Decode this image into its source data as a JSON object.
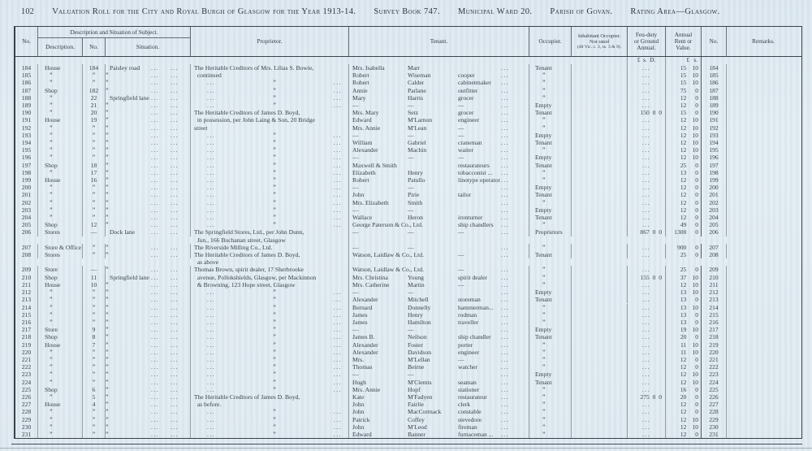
{
  "page": {
    "number": "102",
    "title_segments": [
      "Valuation Roll for the City and Royal Burgh of Glasgow for the Year 1913-14.",
      "Survey Book 747.",
      "Municipal Ward 20.",
      "Parish of Govan.",
      "Rating Area—Glasgow."
    ]
  },
  "table": {
    "headers": {
      "no_left": "No.",
      "desc_group": "Description and Situation of Subject.",
      "description": "Description.",
      "sub_no": "No.",
      "situation": "Situation.",
      "proprietor": "Proprietor.",
      "tenant": "Tenant.",
      "occupier": "Occupier.",
      "inhabitant_lines": [
        "Inhabitant Occupier.",
        "Not rated",
        "(48 Vic. c. 3, ss. 3 & 9)."
      ],
      "feu_lines": [
        "Feu-duty",
        "or Ground",
        "Annual."
      ],
      "rent_lines": [
        "Annual",
        "Rent or",
        "Value."
      ],
      "no_right": "No.",
      "remarks": "Remarks."
    },
    "currency_feu": "£  s.  D.",
    "currency_rent": "£   s.",
    "ink_color": "#39424a",
    "paper_color": "#e1ebf2",
    "rows": [
      {
        "n": "184",
        "d": "House",
        "sn": "184",
        "s": "Paisley road",
        "p": [
          "The Heritable Creditors of Mrs. Lilias S. Bowie,"
        ],
        "t1": "Mrs. Isabella",
        "t2": "Marr",
        "t3": "",
        "o": "Tenant",
        "f": null,
        "rl": "15",
        "rs": "10"
      },
      {
        "n": "185",
        "d": "”",
        "sn": "”",
        "s": "”",
        "p": [
          " continued"
        ],
        "t1": "Robert",
        "t2": "Wiseman",
        "t3": "cooper",
        "o": "”",
        "f": null,
        "rl": "15",
        "rs": "10"
      },
      {
        "n": "186",
        "d": "”",
        "sn": "”",
        "s": "”",
        "p": null,
        "t1": "Robert",
        "t2": "Calder",
        "t3": "cabinetmaker",
        "o": "”",
        "f": null,
        "rl": "15",
        "rs": "10"
      },
      {
        "n": "187",
        "d": "Shop",
        "sn": "182",
        "s": "”",
        "p": null,
        "t1": "Annie",
        "t2": "Parlane",
        "t3": "outfitter",
        "o": "”",
        "f": null,
        "rl": "75",
        "rs": "0"
      },
      {
        "n": "188",
        "d": "”",
        "sn": "22",
        "s": "Springfield lane",
        "p": null,
        "t1": "Mary",
        "t2": "Harris",
        "t3": "grocer",
        "o": "”",
        "f": null,
        "rl": "12",
        "rs": "0"
      },
      {
        "n": "189",
        "d": "”",
        "sn": "21",
        "s": "”",
        "p": null,
        "t1": "—",
        "t2": "—",
        "t3": "—",
        "o": "Empty",
        "f": null,
        "rl": "12",
        "rs": "0"
      },
      {
        "n": "190",
        "d": "”",
        "sn": "20",
        "s": "”",
        "p": [
          "The Heritable Creditors of James D. Boyd,"
        ],
        "t1": "Mrs. Mary",
        "t2": "Setz",
        "t3": "grocer",
        "o": "Tenant",
        "f": "150  0  0",
        "rl": "15",
        "rs": "0"
      },
      {
        "n": "191",
        "d": "House",
        "sn": "19",
        "s": "”",
        "p": [
          " in possession, per John Laing & Son, 20 Bridge"
        ],
        "t1": "Edward",
        "t2": "M'Larnon",
        "t3": "engineer",
        "o": "”",
        "f": null,
        "rl": "12",
        "rs": "10"
      },
      {
        "n": "192",
        "d": "”",
        "sn": "”",
        "s": "”",
        "p": [
          "street"
        ],
        "t1": "Mrs. Annie",
        "t2": "M'Lean",
        "t3": "—",
        "o": "”",
        "f": null,
        "rl": "12",
        "rs": "10"
      },
      {
        "n": "193",
        "d": "”",
        "sn": "”",
        "s": "”",
        "p": null,
        "t1": "—",
        "t2": "—",
        "t3": "—",
        "o": "Empty",
        "f": null,
        "rl": "12",
        "rs": "10"
      },
      {
        "n": "194",
        "d": "”",
        "sn": "”",
        "s": "”",
        "p": null,
        "t1": "William",
        "t2": "Gabriel",
        "t3": "craneman",
        "o": "Tenant",
        "f": null,
        "rl": "12",
        "rs": "10"
      },
      {
        "n": "195",
        "d": "”",
        "sn": "”",
        "s": "”",
        "p": null,
        "t1": "Alexander",
        "t2": "Machin",
        "t3": "waiter",
        "o": "”",
        "f": null,
        "rl": "12",
        "rs": "10"
      },
      {
        "n": "196",
        "d": "”",
        "sn": "”",
        "s": "”",
        "p": null,
        "t1": "—",
        "t2": "—",
        "t3": "—",
        "o": "Empty",
        "f": null,
        "rl": "12",
        "rs": "10"
      },
      {
        "n": "197",
        "d": "Shop",
        "sn": "18",
        "s": "”",
        "p": null,
        "t1": "Maxwell & Smith",
        "t2": "",
        "t3": "restaurateurs",
        "w": 1,
        "o": "Tenant",
        "f": null,
        "rl": "25",
        "rs": "0"
      },
      {
        "n": "198",
        "d": "”",
        "sn": "17",
        "s": "”",
        "p": null,
        "t1": "Elizabeth",
        "t2": "Henry",
        "t3": "tobacconist ...",
        "o": "”",
        "f": null,
        "rl": "13",
        "rs": "0"
      },
      {
        "n": "199",
        "d": "House",
        "sn": "16",
        "s": "”",
        "p": null,
        "t1": "Robert",
        "t2": "Patullo",
        "t3": "linotype operator",
        "o": "”",
        "f": null,
        "rl": "12",
        "rs": "0"
      },
      {
        "n": "200",
        "d": "”",
        "sn": "”",
        "s": "”",
        "p": null,
        "t1": "—",
        "t2": "—",
        "t3": "",
        "o": "Empty",
        "f": null,
        "rl": "12",
        "rs": "0"
      },
      {
        "n": "201",
        "d": "”",
        "sn": "”",
        "s": "”",
        "p": null,
        "t1": "John",
        "t2": "Pirie",
        "t3": "tailor",
        "o": "Tenant",
        "f": null,
        "rl": "12",
        "rs": "0"
      },
      {
        "n": "202",
        "d": "”",
        "sn": "”",
        "s": "”",
        "p": null,
        "t1": "Mrs. Elizabeth",
        "t2": "Smith",
        "t3": "",
        "o": "”",
        "f": null,
        "rl": "12",
        "rs": "0"
      },
      {
        "n": "203",
        "d": "”",
        "sn": "”",
        "s": "”",
        "p": null,
        "t1": "—",
        "t2": "—",
        "t3": "",
        "o": "Empty",
        "f": null,
        "rl": "12",
        "rs": "0"
      },
      {
        "n": "204",
        "d": "”",
        "sn": "”",
        "s": "”",
        "p": null,
        "t1": "Wallace",
        "t2": "Heron",
        "t3": "ironturner",
        "o": "Tenant",
        "f": null,
        "rl": "12",
        "rs": "0"
      },
      {
        "n": "205",
        "d": "Shop",
        "sn": "12",
        "s": "”",
        "p": null,
        "t1": "George Paterson & Co., Ltd.",
        "t2": "",
        "t3": "ship chandlers",
        "w": 1,
        "o": "”",
        "f": null,
        "rl": "49",
        "rs": "0"
      },
      {
        "n": "206",
        "d": "Stores",
        "sn": "—",
        "s": "Dock lane",
        "p": [
          "The Springfield Stores, Ltd., per John Dunn,",
          " Jun., 166 Buchanan street, Glasgow"
        ],
        "h": 2,
        "t1": "—",
        "t2": "—",
        "t3": "—",
        "o": "Proprietors",
        "f": "867  0  0",
        "rl": "1300",
        "rs": "0"
      },
      {
        "n": "207",
        "d": "Store & Office",
        "sn": "”",
        "s": "”",
        "p": [
          "The Riverside Milling Co., Ltd."
        ],
        "t1": "—",
        "t2": "—",
        "t3": "",
        "o": "”",
        "f": null,
        "rl": "900",
        "rs": "0"
      },
      {
        "n": "208",
        "d": "Stores",
        "sn": "”",
        "s": "”",
        "p": [
          "The Heritable Creditors of James D. Boyd,",
          " as above"
        ],
        "h": 2,
        "t1": "Watson, Laidlaw & Co., Ltd.",
        "t2": "",
        "t3": "—",
        "w": 1,
        "o": "Tenant",
        "f": null,
        "rl": "25",
        "rs": "0"
      },
      {
        "n": "209",
        "d": "Store",
        "sn": "—",
        "s": "”",
        "p": [
          "Thomas Brown, spirit dealer, 17 Sherbrooke"
        ],
        "t1": "Watson, Laidlaw & Co., Ltd.",
        "t2": "",
        "t3": "—",
        "w": 1,
        "o": "”",
        "f": null,
        "rl": "25",
        "rs": "0"
      },
      {
        "n": "210",
        "d": "Shop",
        "sn": "11",
        "s": "Springfield lane",
        "p": [
          " avenue, Pollokshields, Glasgow, per Mackinnon"
        ],
        "t1": "Mrs. Christina",
        "t2": "Young",
        "t3": "spirit dealer",
        "o": "”",
        "f": "155  0  0",
        "rl": "37",
        "rs": "10"
      },
      {
        "n": "211",
        "d": "House",
        "sn": "10",
        "s": "”",
        "p": [
          " & Browning, 123 Hope street, Glasgow"
        ],
        "t1": "Mrs. Catherine",
        "t2": "Martin",
        "t3": "—",
        "o": "”",
        "f": null,
        "rl": "12",
        "rs": "10"
      },
      {
        "n": "212",
        "d": "”",
        "sn": "”",
        "s": "”",
        "p": null,
        "t1": "—",
        "t2": "—",
        "t3": "",
        "o": "Empty",
        "f": null,
        "rl": "13",
        "rs": "10"
      },
      {
        "n": "213",
        "d": "”",
        "sn": "”",
        "s": "”",
        "p": null,
        "t1": "Alexander",
        "t2": "Mitchell",
        "t3": "storeman",
        "o": "Tenant",
        "f": null,
        "rl": "13",
        "rs": "0"
      },
      {
        "n": "214",
        "d": "”",
        "sn": "”",
        "s": "”",
        "p": null,
        "t1": "Bernard",
        "t2": "Donnelly",
        "t3": "hammerman...",
        "o": "”",
        "f": null,
        "rl": "13",
        "rs": "10"
      },
      {
        "n": "215",
        "d": "”",
        "sn": "”",
        "s": "”",
        "p": null,
        "t1": "James",
        "t2": "Henry",
        "t3": "rodman",
        "o": "”",
        "f": null,
        "rl": "13",
        "rs": "0"
      },
      {
        "n": "216",
        "d": "”",
        "sn": "”",
        "s": "”",
        "p": null,
        "t1": "James",
        "t2": "Hamilton",
        "t3": "traveller",
        "o": "”",
        "f": null,
        "rl": "13",
        "rs": "0"
      },
      {
        "n": "217",
        "d": "Store",
        "sn": "9",
        "s": "”",
        "p": null,
        "t1": "—",
        "t2": "—",
        "t3": "",
        "o": "Empty",
        "f": null,
        "rl": "19",
        "rs": "10"
      },
      {
        "n": "218",
        "d": "Shop",
        "sn": "8",
        "s": "”",
        "p": null,
        "t1": "James B.",
        "t2": "Neilson",
        "t3": "ship chandler",
        "o": "Tenant",
        "f": null,
        "rl": "20",
        "rs": "0"
      },
      {
        "n": "219",
        "d": "House",
        "sn": "7",
        "s": "”",
        "p": null,
        "t1": "Alexander",
        "t2": "Foster",
        "t3": "porter",
        "o": "”",
        "f": null,
        "rl": "11",
        "rs": "10"
      },
      {
        "n": "220",
        "d": "”",
        "sn": "”",
        "s": "”",
        "p": null,
        "t1": "Alexander",
        "t2": "Davidson",
        "t3": "engineer",
        "o": "”",
        "f": null,
        "rl": "11",
        "rs": "10"
      },
      {
        "n": "221",
        "d": "”",
        "sn": "”",
        "s": "”",
        "p": null,
        "t1": "Mrs.",
        "t2": "M'Lellan",
        "t3": "—",
        "o": "”",
        "f": null,
        "rl": "12",
        "rs": "0"
      },
      {
        "n": "222",
        "d": "”",
        "sn": "”",
        "s": "”",
        "p": null,
        "t1": "Thomas",
        "t2": "Beirne",
        "t3": "watcher",
        "o": "”",
        "f": null,
        "rl": "12",
        "rs": "0"
      },
      {
        "n": "223",
        "d": "”",
        "sn": "”",
        "s": "”",
        "p": null,
        "t1": "—",
        "t2": "—",
        "t3": "",
        "o": "Empty",
        "f": null,
        "rl": "12",
        "rs": "10"
      },
      {
        "n": "224",
        "d": "”",
        "sn": "”",
        "s": "”",
        "p": null,
        "t1": "Hugh",
        "t2": "M'Clemts",
        "t3": "seaman",
        "o": "Tenant",
        "f": null,
        "rl": "12",
        "rs": "10"
      },
      {
        "n": "225",
        "d": "Shop",
        "sn": "6",
        "s": "”",
        "p": null,
        "t1": "Mrs. Annie",
        "t2": "Hopf",
        "t3": "stationer",
        "o": "”",
        "f": null,
        "rl": "16",
        "rs": "0"
      },
      {
        "n": "226",
        "d": "”",
        "sn": "5",
        "s": "”",
        "p": [
          "The Heritable Creditors of James D. Boyd,"
        ],
        "t1": "Kate",
        "t2": "M'Fadyen",
        "t3": "restaurateur",
        "o": "”",
        "f": "275  0  0",
        "rl": "20",
        "rs": "0"
      },
      {
        "n": "227",
        "d": "House",
        "sn": "4",
        "s": "”",
        "p": [
          " as before."
        ],
        "t1": "John",
        "t2": "Fairlie",
        "t3": "clerk",
        "o": "”",
        "f": null,
        "rl": "12",
        "rs": "0"
      },
      {
        "n": "228",
        "d": "”",
        "sn": "”",
        "s": "”",
        "p": null,
        "t1": "John",
        "t2": "MacCormack",
        "t3": "constable",
        "o": "”",
        "f": null,
        "rl": "12",
        "rs": "0"
      },
      {
        "n": "229",
        "d": "”",
        "sn": "”",
        "s": "”",
        "p": null,
        "t1": "Patrick",
        "t2": "Coffey",
        "t3": "stevedore",
        "o": "”",
        "f": null,
        "rl": "12",
        "rs": "10"
      },
      {
        "n": "230",
        "d": "”",
        "sn": "”",
        "s": "”",
        "p": null,
        "t1": "John",
        "t2": "M'Leod",
        "t3": "fireman",
        "o": "”",
        "f": null,
        "rl": "12",
        "rs": "10"
      },
      {
        "n": "231",
        "d": "”",
        "sn": "”",
        "s": "”",
        "p": null,
        "t1": "Edward",
        "t2": "Banner",
        "t3": "furnaceman ...",
        "o": "”",
        "f": null,
        "rl": "12",
        "rs": "0"
      }
    ]
  }
}
